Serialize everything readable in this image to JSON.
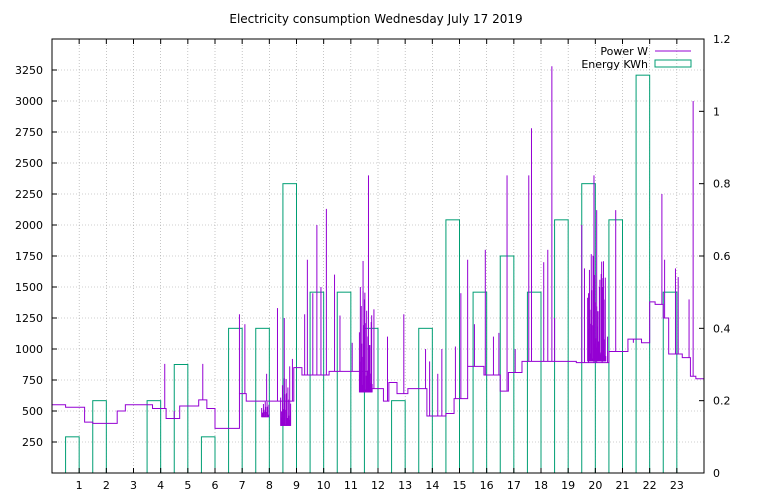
{
  "colors": {
    "power": "#9400d3",
    "energy": "#009e73",
    "grid": "#a0a0a0"
  },
  "chart_data": {
    "type": "bar+line",
    "title": "Electricity consumption Wednesday July 17 2019",
    "x_ticks": [
      1,
      2,
      3,
      4,
      5,
      6,
      7,
      8,
      9,
      10,
      11,
      12,
      13,
      14,
      15,
      16,
      17,
      18,
      19,
      20,
      21,
      22,
      23
    ],
    "xlim": [
      0,
      24
    ],
    "y_left": {
      "range": [
        0,
        3500
      ],
      "ticks": [
        250,
        500,
        750,
        1000,
        1250,
        1500,
        1750,
        2000,
        2250,
        2500,
        2750,
        3000,
        3250
      ]
    },
    "y_right": {
      "range": [
        0,
        1.2
      ],
      "ticks": [
        "0",
        "0.2",
        "0.4",
        "0.6",
        "0.8",
        "1",
        "1.2"
      ],
      "tick_values": [
        0,
        0.2,
        0.4,
        0.6,
        0.8,
        1.0,
        1.2
      ]
    },
    "grid": true,
    "legend_position": "top-right",
    "legend": [
      {
        "key": "power",
        "label": "Power W"
      },
      {
        "key": "energy",
        "label": "Energy KWh"
      }
    ],
    "energy_kwh": {
      "hours": [
        0,
        1,
        2,
        3,
        4,
        5,
        6,
        7,
        8,
        9,
        10,
        11,
        12,
        13,
        14,
        15,
        16,
        17,
        18,
        19,
        20,
        21,
        22,
        23
      ],
      "values": [
        0.1,
        0.2,
        0,
        0.2,
        0.3,
        0.1,
        0.4,
        0.4,
        0.8,
        0.5,
        0.5,
        0.4,
        0.2,
        0.4,
        0.7,
        0.5,
        0.6,
        0.5,
        0.7,
        0.8,
        0.7,
        1.1,
        0.5,
        0
      ]
    },
    "power_w": {
      "step": [
        [
          0,
          550
        ],
        [
          0.5,
          530
        ],
        [
          1.2,
          410
        ],
        [
          1.5,
          400
        ],
        [
          2.4,
          500
        ],
        [
          2.7,
          550
        ],
        [
          3.7,
          520
        ],
        [
          4.2,
          440
        ],
        [
          4.7,
          540
        ],
        [
          5.4,
          590
        ],
        [
          5.7,
          520
        ],
        [
          6.0,
          360
        ],
        [
          6.9,
          640
        ],
        [
          7.15,
          580
        ],
        [
          8.9,
          850
        ],
        [
          9.2,
          790
        ],
        [
          10.2,
          820
        ],
        [
          11.6,
          680
        ],
        [
          12.2,
          580
        ],
        [
          12.4,
          730
        ],
        [
          12.7,
          640
        ],
        [
          13.1,
          680
        ],
        [
          13.8,
          460
        ],
        [
          14.5,
          480
        ],
        [
          14.8,
          600
        ],
        [
          15.3,
          860
        ],
        [
          15.9,
          790
        ],
        [
          16.5,
          660
        ],
        [
          16.8,
          810
        ],
        [
          17.3,
          900
        ],
        [
          18.1,
          900
        ],
        [
          19.3,
          890
        ],
        [
          20.0,
          890
        ],
        [
          20.5,
          980
        ],
        [
          21.2,
          1080
        ],
        [
          21.7,
          1050
        ],
        [
          22.0,
          1380
        ],
        [
          22.2,
          1360
        ],
        [
          22.5,
          1250
        ],
        [
          22.7,
          960
        ],
        [
          23.2,
          930
        ],
        [
          23.5,
          780
        ],
        [
          23.7,
          760
        ],
        [
          24,
          760
        ]
      ],
      "spikes": [
        [
          4.15,
          880
        ],
        [
          4.5,
          500
        ],
        [
          5.55,
          880
        ],
        [
          6.9,
          1280
        ],
        [
          7.1,
          1200
        ],
        [
          7.5,
          580
        ],
        [
          7.9,
          800
        ],
        [
          8.3,
          1330
        ],
        [
          8.55,
          1250
        ],
        [
          8.75,
          860
        ],
        [
          8.85,
          920
        ],
        [
          9.3,
          1280
        ],
        [
          9.4,
          1720
        ],
        [
          9.6,
          1450
        ],
        [
          9.75,
          2000
        ],
        [
          9.9,
          1500
        ],
        [
          10.1,
          2130
        ],
        [
          10.4,
          1600
        ],
        [
          10.6,
          1270
        ],
        [
          11.05,
          1050
        ],
        [
          11.35,
          1500
        ],
        [
          11.45,
          1710
        ],
        [
          11.5,
          1400
        ],
        [
          11.65,
          2400
        ],
        [
          11.85,
          1320
        ],
        [
          12.35,
          1100
        ],
        [
          12.95,
          1280
        ],
        [
          13.75,
          1000
        ],
        [
          13.9,
          900
        ],
        [
          14.2,
          800
        ],
        [
          14.35,
          1000
        ],
        [
          14.85,
          1020
        ],
        [
          15.05,
          1450
        ],
        [
          15.3,
          1720
        ],
        [
          15.55,
          1200
        ],
        [
          15.95,
          1800
        ],
        [
          16.25,
          1100
        ],
        [
          16.45,
          1130
        ],
        [
          16.75,
          2400
        ],
        [
          17.05,
          1000
        ],
        [
          17.55,
          2400
        ],
        [
          17.65,
          2780
        ],
        [
          18.1,
          1700
        ],
        [
          18.25,
          1800
        ],
        [
          18.4,
          3280
        ],
        [
          18.5,
          1250
        ],
        [
          19.5,
          2000
        ],
        [
          19.6,
          1650
        ],
        [
          19.75,
          1450
        ],
        [
          19.95,
          2400
        ],
        [
          20.05,
          2120
        ],
        [
          20.25,
          1500
        ],
        [
          20.45,
          1100
        ],
        [
          20.75,
          2120
        ],
        [
          21.4,
          1050
        ],
        [
          22.45,
          2250
        ],
        [
          22.55,
          1720
        ],
        [
          22.95,
          1650
        ],
        [
          23.05,
          1580
        ],
        [
          23.45,
          1400
        ],
        [
          23.6,
          3000
        ]
      ],
      "bursts": [
        [
          7.7,
          8.0,
          450,
          580
        ],
        [
          8.4,
          8.8,
          380,
          780
        ],
        [
          11.3,
          11.8,
          650,
          1500
        ],
        [
          19.7,
          20.4,
          900,
          1800
        ]
      ]
    }
  }
}
